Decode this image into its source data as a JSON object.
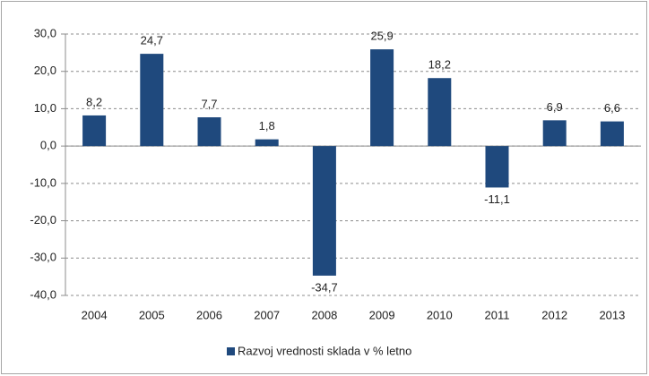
{
  "chart_data": {
    "type": "bar",
    "categories": [
      "2004",
      "2005",
      "2006",
      "2007",
      "2008",
      "2009",
      "2010",
      "2011",
      "2012",
      "2013"
    ],
    "series": [
      {
        "name": "Razvoj vrednosti sklada v % letno",
        "color": "#1f497d",
        "values": [
          8.2,
          24.7,
          7.7,
          1.8,
          -34.7,
          25.9,
          18.2,
          -11.1,
          6.9,
          6.6
        ],
        "value_labels": [
          "8,2",
          "24,7",
          "7,7",
          "1,8",
          "-34,7",
          "25,9",
          "18,2",
          "-11,1",
          "6,9",
          "6,6"
        ]
      }
    ],
    "ylim": [
      -40,
      30
    ],
    "yticks": [
      {
        "value": -40,
        "label": "-40,0"
      },
      {
        "value": -30,
        "label": "-30,0"
      },
      {
        "value": -20,
        "label": "-20,0"
      },
      {
        "value": -10,
        "label": "-10,0"
      },
      {
        "value": 0,
        "label": "0,0"
      },
      {
        "value": 10,
        "label": "10,0"
      },
      {
        "value": 20,
        "label": "20,0"
      },
      {
        "value": 30,
        "label": "30,0"
      }
    ],
    "grid": true,
    "legend": "bottom"
  }
}
